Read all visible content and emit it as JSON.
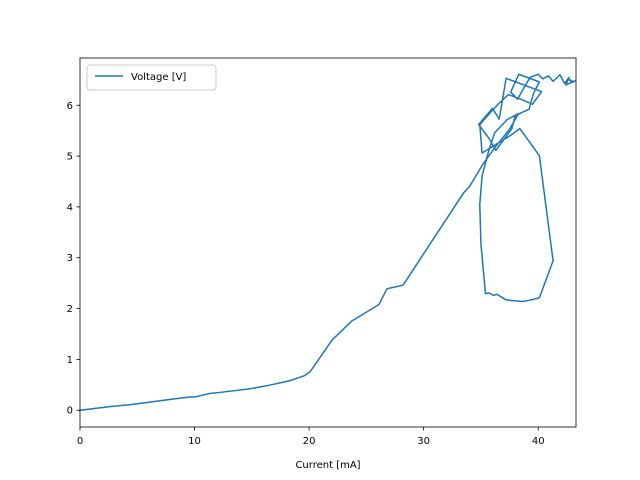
{
  "chart_data": {
    "type": "line",
    "xlabel": "Current [mA]",
    "ylabel": "",
    "xlim": [
      0,
      43.3
    ],
    "ylim": [
      -0.33,
      6.93
    ],
    "x_ticks": [
      0,
      10,
      20,
      30,
      40
    ],
    "y_ticks": [
      0,
      1,
      2,
      3,
      4,
      5,
      6
    ],
    "x_tick_labels": [
      "0",
      "10",
      "20",
      "30",
      "40"
    ],
    "y_tick_labels": [
      "0",
      "1",
      "2",
      "3",
      "4",
      "5",
      "6"
    ],
    "grid": false,
    "legend_position": "upper-left",
    "series": [
      {
        "name": "Voltage [V]",
        "color": "#1f77b4",
        "x": [
          0,
          2.6,
          4.4,
          6.1,
          7.8,
          9.6,
          10.0,
          10.4,
          11.3,
          12.2,
          14.8,
          16.5,
          18.3,
          19.6,
          20.1,
          22.0,
          23.7,
          26.1,
          26.8,
          28.2,
          33.5,
          34.0,
          35.2,
          36.3,
          37.5,
          38.3,
          37.3,
          36.2,
          35.7,
          35.1,
          34.9,
          35.0,
          35.4,
          35.7,
          36.1,
          36.4,
          37.2,
          38.6,
          39.2,
          40.1,
          41.3,
          40.1,
          38.4,
          37.6,
          35.1,
          34.9,
          35.8,
          36.5,
          37.4,
          38.7,
          39.5,
          40.3,
          37.2,
          36.6,
          36.0,
          34.8,
          35.7,
          36.3,
          37.7,
          38.0,
          39.2,
          39.6,
          40.1,
          38.3,
          37.6,
          38.2,
          38.9,
          39.3,
          40.0,
          40.4,
          40.9,
          41.3,
          41.9,
          42.3,
          42.7,
          42.4,
          42.8,
          43.1,
          42.6,
          43.0,
          43.2
        ],
        "y": [
          0,
          0.07,
          0.11,
          0.16,
          0.21,
          0.26,
          0.26,
          0.28,
          0.33,
          0.35,
          0.42,
          0.49,
          0.58,
          0.68,
          0.76,
          1.38,
          1.75,
          2.08,
          2.39,
          2.46,
          4.28,
          4.4,
          4.85,
          5.19,
          5.53,
          5.84,
          5.72,
          5.46,
          5.12,
          4.61,
          4.05,
          3.28,
          2.29,
          2.31,
          2.26,
          2.28,
          2.17,
          2.14,
          2.16,
          2.21,
          2.94,
          5.01,
          5.54,
          5.41,
          5.06,
          5.62,
          5.85,
          6.02,
          6.21,
          6.1,
          6.02,
          6.27,
          6.53,
          5.73,
          5.94,
          5.62,
          5.35,
          5.11,
          5.54,
          5.8,
          5.92,
          6.24,
          6.46,
          6.61,
          6.26,
          6.12,
          6.4,
          6.55,
          6.61,
          6.52,
          6.58,
          6.47,
          6.6,
          6.43,
          6.55,
          6.4,
          6.44,
          6.46,
          6.52,
          6.45,
          6.48
        ]
      }
    ]
  }
}
